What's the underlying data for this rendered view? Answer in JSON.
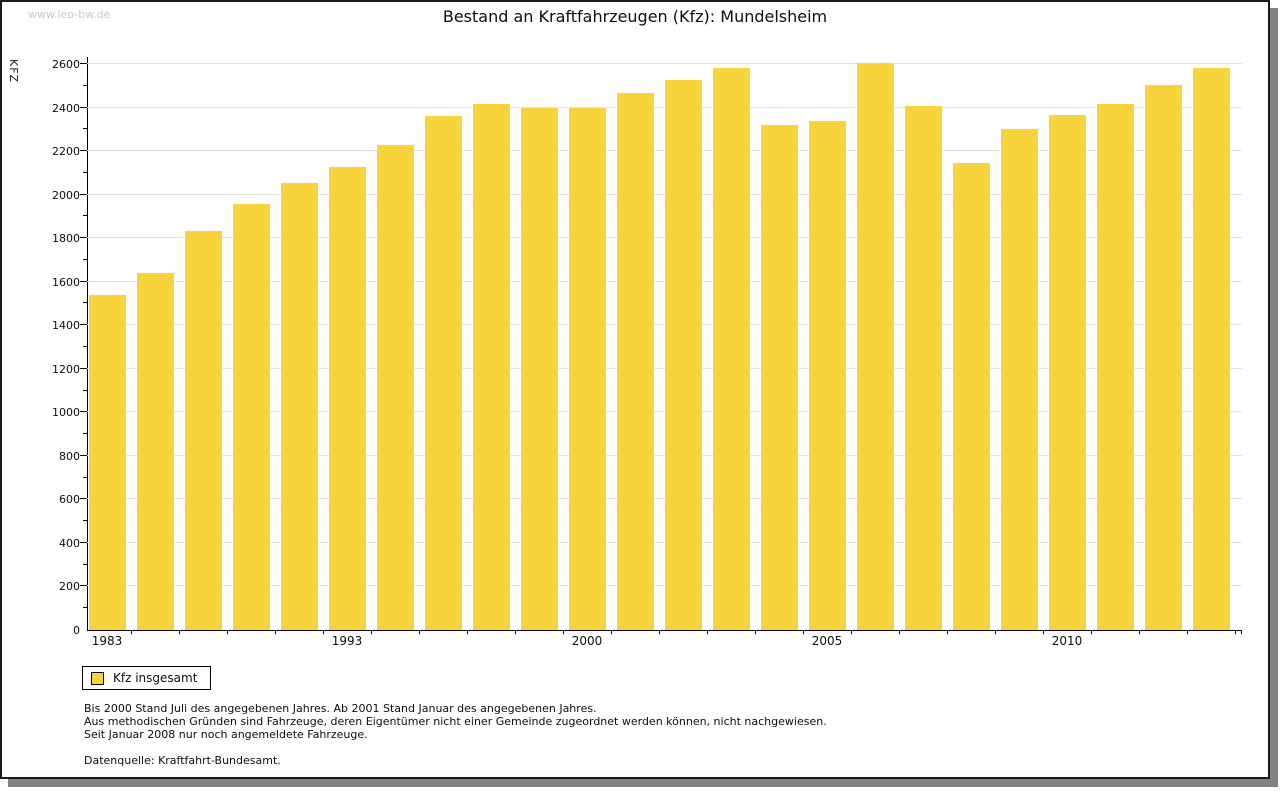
{
  "watermark": "www.leo-bw.de",
  "title": "Bestand an Kraftfahrzeugen (Kfz): Mundelsheim",
  "legend": {
    "label": "Kfz insgesamt"
  },
  "footnotes": {
    "line1": "Bis 2000 Stand Juli des angegebenen Jahres. Ab 2001 Stand Januar des angegebenen Jahres.",
    "line2": "Aus methodischen Gründen sind Fahrzeuge, deren Eigentümer nicht einer Gemeinde zugeordnet werden können, nicht nachgewiesen.",
    "line3": "Seit Januar 2008 nur noch angemeldete Fahrzeuge.",
    "source": "Datenquelle: Kraftfahrt-Bundesamt."
  },
  "colors": {
    "bar": "#F9D33C",
    "grid": "#E0E0E0",
    "axis": "#000000",
    "frame_shadow": "#828282",
    "watermark": "#C9C9C9"
  },
  "chart_data": {
    "type": "bar",
    "title": "Bestand an Kraftfahrzeugen (Kfz): Mundelsheim",
    "xlabel": "",
    "ylabel": "KFZ",
    "ylim": [
      0,
      2600
    ],
    "ytick_step": 200,
    "ytick_minor_step": 100,
    "grid": true,
    "legend_position": "bottom-left",
    "series_name": "Kfz insgesamt",
    "categories": [
      1983,
      1985,
      1987,
      1989,
      1991,
      1993,
      1995,
      1997,
      1998,
      1999,
      2000,
      2001,
      2002,
      2003,
      2004,
      2005,
      2006,
      2007,
      2008,
      2009,
      2010,
      2011,
      2012,
      2013
    ],
    "values": [
      1540,
      1640,
      1835,
      1955,
      2055,
      2125,
      2230,
      2360,
      2415,
      2400,
      2400,
      2465,
      2525,
      2580,
      2320,
      2340,
      2605,
      2405,
      2145,
      2300,
      2365,
      2415,
      2505,
      2580
    ],
    "x_axis_labeled_years": [
      "1983",
      "1993",
      "2000",
      "2005",
      "2010"
    ]
  }
}
